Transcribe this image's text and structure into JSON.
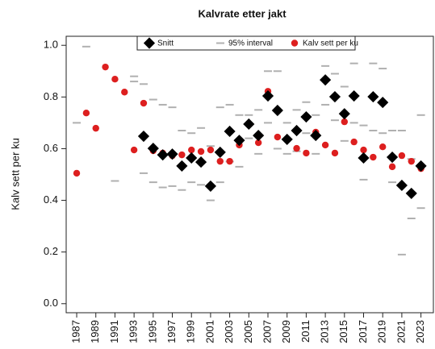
{
  "chart_data": {
    "type": "scatter",
    "title": "Kalvrate etter jakt",
    "y_label": "Kalv sett per ku",
    "x": [
      1987,
      1988,
      1989,
      1990,
      1991,
      1992,
      1993,
      1994,
      1995,
      1996,
      1997,
      1998,
      1999,
      2000,
      2001,
      2002,
      2003,
      2004,
      2005,
      2006,
      2007,
      2008,
      2009,
      2010,
      2011,
      2012,
      2013,
      2014,
      2015,
      2016,
      2017,
      2018,
      2019,
      2020,
      2021,
      2022,
      2023
    ],
    "xlim": [
      1985.9,
      2024.3
    ],
    "xticks": [
      1987,
      1989,
      1991,
      1993,
      1995,
      1997,
      1999,
      2001,
      2003,
      2005,
      2007,
      2009,
      2011,
      2013,
      2015,
      2017,
      2019,
      2021,
      2023
    ],
    "ylim": [
      -0.035,
      1.035
    ],
    "yticks": [
      {
        "value": 0,
        "label": "0.0"
      },
      0.2,
      0.4,
      0.6,
      0.8,
      {
        "value": 1,
        "label": "1.0"
      }
    ],
    "legend": "top",
    "series": [
      {
        "name": "Snitt",
        "color": "#000000",
        "marker": "diamond",
        "values": [
          null,
          null,
          null,
          null,
          null,
          null,
          null,
          0.648,
          0.601,
          0.576,
          0.579,
          0.533,
          0.564,
          0.548,
          0.455,
          0.586,
          0.667,
          0.632,
          0.695,
          0.651,
          0.804,
          0.748,
          0.636,
          0.67,
          0.723,
          0.651,
          0.866,
          0.801,
          0.735,
          0.804,
          0.564,
          0.801,
          0.779,
          0.567,
          0.458,
          0.427,
          0.533
        ]
      },
      {
        "name": "95% interval",
        "color": "#b0b0b0",
        "marker": "dash",
        "lower": [
          null,
          null,
          null,
          null,
          0.475,
          null,
          0.86,
          0.505,
          0.47,
          0.45,
          0.455,
          0.44,
          0.47,
          0.46,
          0.4,
          0.47,
          0.55,
          0.53,
          0.64,
          0.58,
          0.7,
          0.6,
          0.58,
          0.59,
          0.66,
          0.58,
          0.77,
          0.71,
          0.63,
          0.7,
          0.48,
          0.67,
          0.66,
          0.47,
          0.19,
          0.33,
          0.37
        ],
        "upper": [
          0.7,
          0.995,
          null,
          null,
          null,
          null,
          0.88,
          0.85,
          0.79,
          0.77,
          0.76,
          0.67,
          0.66,
          0.68,
          0.61,
          0.76,
          0.77,
          0.73,
          0.73,
          0.75,
          0.9,
          0.9,
          0.7,
          0.75,
          0.78,
          0.73,
          0.92,
          0.89,
          0.84,
          0.93,
          0.69,
          0.93,
          0.91,
          0.67,
          0.67,
          0.56,
          0.73
        ]
      },
      {
        "name": "Kalv sett per ku",
        "color": "#dd1f1f",
        "marker": "circle",
        "values": [
          0.505,
          0.738,
          0.679,
          0.916,
          0.869,
          0.819,
          0.595,
          0.776,
          0.592,
          0.583,
          0.573,
          0.576,
          0.595,
          0.589,
          0.595,
          0.551,
          0.551,
          0.614,
          0.698,
          0.623,
          0.822,
          0.645,
          0.636,
          0.601,
          0.583,
          0.664,
          0.614,
          0.583,
          0.704,
          0.626,
          0.595,
          0.567,
          0.607,
          0.53,
          0.573,
          0.551,
          0.523
        ]
      }
    ]
  }
}
